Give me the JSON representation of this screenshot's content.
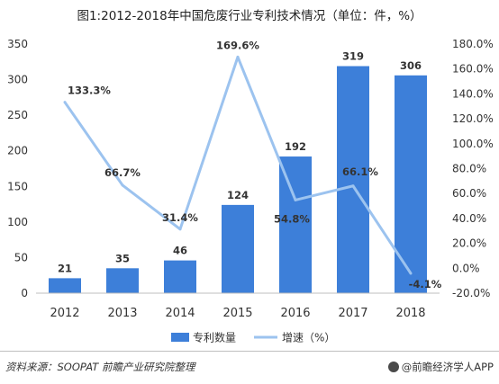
{
  "title": "图1:2012-2018年中国危废行业专利技术情况（单位：件，%）",
  "chart_data": {
    "type": "bar",
    "categories": [
      "2012",
      "2013",
      "2014",
      "2015",
      "2016",
      "2017",
      "2018"
    ],
    "series": [
      {
        "name": "专利数量",
        "type": "bar",
        "axis": "left",
        "values": [
          21,
          35,
          46,
          124,
          192,
          319,
          306
        ],
        "labels": [
          "21",
          "35",
          "46",
          "124",
          "192",
          "319",
          "306"
        ],
        "color": "#3d7fd9"
      },
      {
        "name": "增速（%）",
        "type": "line",
        "axis": "right",
        "values": [
          133.3,
          66.7,
          31.4,
          169.6,
          54.8,
          66.1,
          -4.1
        ],
        "labels": [
          "133.3%",
          "66.7%",
          "31.4%",
          "169.6%",
          "54.8%",
          "66.1%",
          "-4.1%"
        ],
        "color": "#9cc3ef"
      }
    ],
    "y_left": {
      "range": [
        0,
        350
      ],
      "ticks": [
        0,
        50,
        100,
        150,
        200,
        250,
        300,
        350
      ],
      "tick_labels": [
        "0",
        "50",
        "100",
        "150",
        "200",
        "250",
        "300",
        "350"
      ]
    },
    "y_right": {
      "range": [
        -20,
        180
      ],
      "ticks": [
        -20,
        0,
        20,
        40,
        60,
        80,
        100,
        120,
        140,
        160,
        180
      ],
      "tick_labels": [
        "-20.0%",
        "0.0%",
        "20.0%",
        "40.0%",
        "60.0%",
        "80.0%",
        "100.0%",
        "120.0%",
        "140.0%",
        "160.0%",
        "180.0%"
      ]
    },
    "grid": false,
    "legend_position": "bottom"
  },
  "footer": {
    "source": "资料来源：SOOPAT 前瞻产业研究院整理",
    "brand": "@前瞻经济学人APP",
    "brand_icon": "qianzhan-logo-icon"
  }
}
